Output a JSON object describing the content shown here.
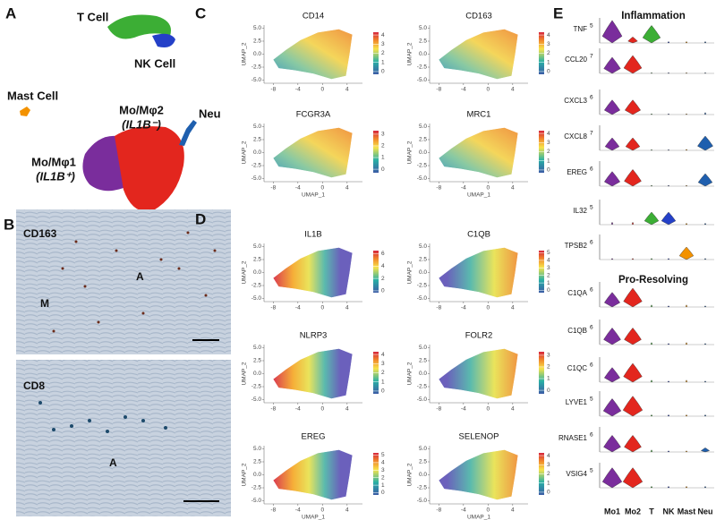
{
  "figure": {
    "panel_a": {
      "label": "A",
      "t_cell": "T Cell",
      "nk_cell": "NK Cell",
      "mast_cell": "Mast Cell",
      "mo2": "Mo/Mφ2",
      "mo2_marker": "(IL1B⁻)",
      "neu": "Neu",
      "mo1": "Mo/Mφ1",
      "mo1_marker": "(IL1B⁺)"
    },
    "panel_b": {
      "label": "B",
      "top": {
        "stain": "CD163",
        "regions": [
          "M",
          "A"
        ]
      },
      "bottom": {
        "stain": "CD8",
        "regions": [
          "A"
        ]
      }
    },
    "umap_axes": {
      "xlabel": "UMAP_1",
      "ylabel": "UMAP_2",
      "xlim": [
        -9.5,
        6.5
      ],
      "ylim": [
        -5.6,
        5.6
      ],
      "xticks": [
        -8,
        -4,
        0,
        4
      ],
      "yticks": [
        {
          "value": 5,
          "label": "5.0"
        },
        {
          "value": 2.5,
          "label": "2.5"
        },
        {
          "value": 0,
          "label": "0.0"
        },
        {
          "value": -2.5,
          "label": "-2.5"
        },
        {
          "value": -5,
          "label": "-5.0"
        }
      ]
    },
    "panel_c": {
      "label": "C",
      "plots": [
        {
          "gene": "CD14",
          "legend_lim": [
            -0.3,
            4.3
          ],
          "legend_ticks": [
            0,
            1,
            2,
            3,
            4
          ]
        },
        {
          "gene": "CD163",
          "legend_lim": [
            -0.3,
            4.3
          ],
          "legend_ticks": [
            0,
            1,
            2,
            3,
            4
          ]
        },
        {
          "gene": "FCGR3A",
          "legend_lim": [
            -0.3,
            3.3
          ],
          "legend_ticks": [
            0,
            1,
            2,
            3
          ]
        },
        {
          "gene": "MRC1",
          "legend_lim": [
            -0.3,
            4.3
          ],
          "legend_ticks": [
            0,
            1,
            2,
            3,
            4
          ]
        }
      ]
    },
    "panel_d": {
      "label": "D",
      "plots": [
        {
          "gene": "IL1B",
          "legend_lim": [
            -0.3,
            6.5
          ],
          "legend_ticks": [
            0,
            2,
            4,
            6
          ]
        },
        {
          "gene": "C1QB",
          "legend_lim": [
            -0.3,
            5.3
          ],
          "legend_ticks": [
            0,
            1,
            2,
            3,
            4,
            5
          ]
        },
        {
          "gene": "NLRP3",
          "legend_lim": [
            -0.3,
            4.3
          ],
          "legend_ticks": [
            0,
            1,
            2,
            3,
            4
          ]
        },
        {
          "gene": "FOLR2",
          "legend_lim": [
            -0.3,
            3.3
          ],
          "legend_ticks": [
            0,
            1,
            2,
            3
          ]
        },
        {
          "gene": "EREG",
          "legend_lim": [
            -0.3,
            5.3
          ],
          "legend_ticks": [
            0,
            1,
            2,
            3,
            4,
            5
          ]
        },
        {
          "gene": "SELENOP",
          "legend_lim": [
            -0.3,
            4.3
          ],
          "legend_ticks": [
            0,
            1,
            2,
            3,
            4
          ]
        }
      ]
    },
    "panel_e": {
      "label": "E",
      "categories": [
        "Mo1",
        "Mo2",
        "T",
        "NK",
        "Mast",
        "Neu"
      ],
      "colors": [
        "#7a2d9c",
        "#e3261e",
        "#3cae35",
        "#2440c8",
        "#f39200",
        "#1f5fae"
      ],
      "sections": [
        {
          "title": "Inflammation",
          "genes": [
            {
              "name": "TNF",
              "max": 5,
              "values": [
                4.5,
                1.2,
                3.5,
                0.3,
                0.3,
                0.3
              ]
            },
            {
              "name": "CCL20",
              "max": 7,
              "values": [
                4.5,
                5,
                0.2,
                0.2,
                0.2,
                0.2
              ]
            },
            {
              "name": "CXCL3",
              "max": 6,
              "values": [
                3.5,
                3.5,
                0.2,
                0.2,
                0.2,
                0.5
              ]
            },
            {
              "name": "CXCL8",
              "max": 7,
              "values": [
                3.5,
                3.5,
                0.2,
                0.2,
                0.3,
                4
              ]
            },
            {
              "name": "EREG",
              "max": 6,
              "values": [
                3.5,
                4,
                0.2,
                0.2,
                0.2,
                3
              ]
            },
            {
              "name": "IL32",
              "max": 5,
              "values": [
                0.5,
                0.5,
                2.5,
                2.5,
                0.3,
                0.3
              ]
            },
            {
              "name": "TPSB2",
              "max": 6,
              "values": [
                0.3,
                0.3,
                0.3,
                0.3,
                3,
                0.3
              ]
            }
          ]
        },
        {
          "title": "Pro-Resolving",
          "genes": [
            {
              "name": "C1QA",
              "max": 6,
              "values": [
                3.5,
                4.5,
                0.5,
                0.3,
                0.5,
                0.3
              ]
            },
            {
              "name": "C1QB",
              "max": 6,
              "values": [
                4,
                4,
                0.5,
                0.3,
                0.5,
                0.3
              ]
            },
            {
              "name": "C1QC",
              "max": 6,
              "values": [
                3.5,
                4.5,
                0.5,
                0.3,
                0.5,
                0.3
              ]
            },
            {
              "name": "LYVE1",
              "max": 5,
              "values": [
                3.5,
                4,
                0.3,
                0.3,
                0.3,
                0.3
              ]
            },
            {
              "name": "RNASE1",
              "max": 6,
              "values": [
                4,
                4,
                0.5,
                0.3,
                0.3,
                1
              ]
            },
            {
              "name": "VSIG4",
              "max": 5,
              "values": [
                4,
                4,
                0.3,
                0.3,
                0.3,
                0.3
              ]
            }
          ]
        }
      ]
    }
  }
}
